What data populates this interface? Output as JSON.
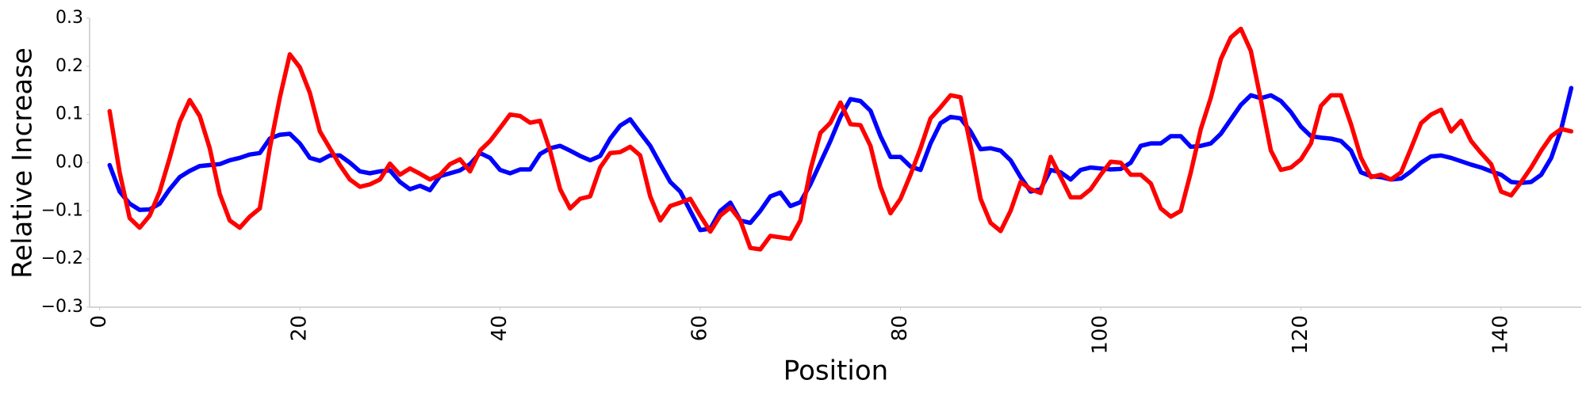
{
  "chart_data": {
    "type": "line",
    "x_label": "Position",
    "y_label": "Relative Increase",
    "xlim": [
      -1,
      148
    ],
    "ylim": [
      -0.3,
      0.3
    ],
    "xticks": [
      0,
      20,
      40,
      60,
      80,
      100,
      120,
      140
    ],
    "yticks": [
      0.3,
      0.2,
      0.1,
      {
        "value": 0,
        "label": "0.0"
      },
      {
        "value": -0.1,
        "label": "−0.1"
      },
      {
        "value": -0.2,
        "label": "−0.2"
      },
      {
        "value": -0.3,
        "label": "−0.3"
      }
    ],
    "grid": false,
    "x": [
      1,
      2,
      3,
      4,
      5,
      6,
      7,
      8,
      9,
      10,
      11,
      12,
      13,
      14,
      15,
      16,
      17,
      18,
      19,
      20,
      21,
      22,
      23,
      24,
      25,
      26,
      27,
      28,
      29,
      30,
      31,
      32,
      33,
      34,
      35,
      36,
      37,
      38,
      39,
      40,
      41,
      42,
      43,
      44,
      45,
      46,
      47,
      48,
      49,
      50,
      51,
      52,
      53,
      54,
      55,
      56,
      57,
      58,
      59,
      60,
      61,
      62,
      63,
      64,
      65,
      66,
      67,
      68,
      69,
      70,
      71,
      72,
      73,
      74,
      75,
      76,
      77,
      78,
      79,
      80,
      81,
      82,
      83,
      84,
      85,
      86,
      87,
      88,
      89,
      90,
      91,
      92,
      93,
      94,
      95,
      96,
      97,
      98,
      99,
      100,
      101,
      102,
      103,
      104,
      105,
      106,
      107,
      108,
      109,
      110,
      111,
      112,
      113,
      114,
      115,
      116,
      117,
      118,
      119,
      120,
      121,
      122,
      123,
      124,
      125,
      126,
      127,
      128,
      129,
      130,
      131,
      132,
      133,
      134,
      135,
      136,
      137,
      138,
      139,
      140,
      141,
      142,
      143,
      144,
      145,
      146,
      147
    ],
    "series": [
      {
        "color": "#0000ff",
        "values": [
          -0.005,
          -0.06,
          -0.085,
          -0.098,
          -0.097,
          -0.085,
          -0.055,
          -0.03,
          -0.017,
          -0.007,
          -0.005,
          -0.003,
          0.005,
          0.01,
          0.017,
          0.02,
          0.05,
          0.058,
          0.06,
          0.04,
          0.01,
          0.004,
          0.015,
          0.015,
          0.0,
          -0.018,
          -0.022,
          -0.018,
          -0.016,
          -0.04,
          -0.055,
          -0.048,
          -0.057,
          -0.028,
          -0.022,
          -0.016,
          -0.003,
          0.02,
          0.01,
          -0.015,
          -0.022,
          -0.014,
          -0.014,
          0.018,
          0.03,
          0.035,
          0.025,
          0.014,
          0.005,
          0.014,
          0.05,
          0.077,
          0.09,
          0.062,
          0.035,
          -0.003,
          -0.04,
          -0.06,
          -0.1,
          -0.14,
          -0.137,
          -0.1,
          -0.083,
          -0.12,
          -0.125,
          -0.1,
          -0.07,
          -0.062,
          -0.09,
          -0.082,
          -0.045,
          0.0,
          0.045,
          0.095,
          0.132,
          0.128,
          0.108,
          0.055,
          0.012,
          0.012,
          -0.008,
          -0.015,
          0.04,
          0.082,
          0.095,
          0.092,
          0.065,
          0.028,
          0.03,
          0.025,
          0.005,
          -0.03,
          -0.06,
          -0.055,
          -0.015,
          -0.02,
          -0.035,
          -0.015,
          -0.01,
          -0.012,
          -0.014,
          -0.013,
          0.0,
          0.035,
          0.04,
          0.04,
          0.055,
          0.055,
          0.033,
          0.035,
          0.04,
          0.06,
          0.09,
          0.12,
          0.14,
          0.134,
          0.14,
          0.128,
          0.105,
          0.075,
          0.055,
          0.052,
          0.05,
          0.045,
          0.025,
          -0.02,
          -0.028,
          -0.03,
          -0.035,
          -0.033,
          -0.018,
          0.0,
          0.013,
          0.015,
          0.01,
          0.003,
          -0.004,
          -0.01,
          -0.018,
          -0.025,
          -0.04,
          -0.042,
          -0.04,
          -0.025,
          0.01,
          0.07,
          0.155
        ]
      },
      {
        "color": "#ff0000",
        "values": [
          0.107,
          -0.02,
          -0.115,
          -0.135,
          -0.11,
          -0.06,
          0.01,
          0.085,
          0.13,
          0.097,
          0.03,
          -0.065,
          -0.12,
          -0.135,
          -0.112,
          -0.095,
          0.03,
          0.135,
          0.225,
          0.198,
          0.145,
          0.065,
          0.03,
          -0.005,
          -0.035,
          -0.05,
          -0.045,
          -0.035,
          -0.002,
          -0.025,
          -0.012,
          -0.023,
          -0.035,
          -0.025,
          -0.003,
          0.007,
          -0.018,
          0.025,
          0.045,
          0.072,
          0.1,
          0.097,
          0.083,
          0.087,
          0.025,
          -0.055,
          -0.095,
          -0.075,
          -0.07,
          -0.01,
          0.02,
          0.022,
          0.033,
          0.015,
          -0.07,
          -0.12,
          -0.09,
          -0.083,
          -0.075,
          -0.11,
          -0.143,
          -0.11,
          -0.093,
          -0.12,
          -0.177,
          -0.18,
          -0.152,
          -0.155,
          -0.158,
          -0.12,
          -0.015,
          0.062,
          0.083,
          0.125,
          0.08,
          0.078,
          0.035,
          -0.05,
          -0.105,
          -0.075,
          -0.025,
          0.03,
          0.092,
          0.115,
          0.14,
          0.136,
          0.035,
          -0.075,
          -0.125,
          -0.142,
          -0.1,
          -0.04,
          -0.055,
          -0.063,
          0.012,
          -0.03,
          -0.072,
          -0.072,
          -0.055,
          -0.025,
          0.002,
          0.0,
          -0.025,
          -0.025,
          -0.043,
          -0.095,
          -0.112,
          -0.1,
          -0.02,
          0.07,
          0.135,
          0.215,
          0.26,
          0.278,
          0.232,
          0.13,
          0.025,
          -0.015,
          -0.01,
          0.007,
          0.04,
          0.118,
          0.14,
          0.14,
          0.08,
          0.01,
          -0.03,
          -0.025,
          -0.035,
          -0.02,
          0.03,
          0.082,
          0.1,
          0.11,
          0.065,
          0.087,
          0.045,
          0.02,
          -0.003,
          -0.06,
          -0.068,
          -0.04,
          -0.01,
          0.025,
          0.055,
          0.07,
          0.065
        ]
      }
    ]
  }
}
